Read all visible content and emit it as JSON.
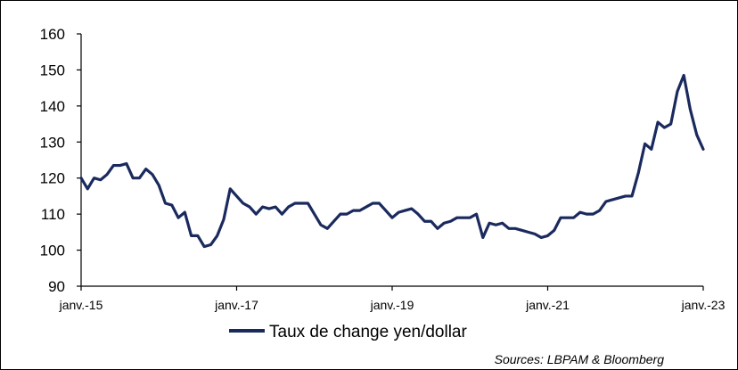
{
  "chart_data": {
    "type": "line",
    "title": "",
    "xlabel": "",
    "ylabel": "",
    "ylim": [
      90,
      160
    ],
    "y_ticks": [
      90,
      100,
      110,
      120,
      130,
      140,
      150,
      160
    ],
    "x_ticks": [
      "janv.-15",
      "janv.-17",
      "janv.-19",
      "janv.-21",
      "janv.-23"
    ],
    "x_range": [
      "2015-01",
      "2023-01"
    ],
    "grid": false,
    "legend_position": "bottom",
    "line_color": "#1a2a5e",
    "series": [
      {
        "name": "Taux de change yen/dollar",
        "points": [
          [
            "2015-01",
            120
          ],
          [
            "2015-02",
            117
          ],
          [
            "2015-03",
            120
          ],
          [
            "2015-04",
            119.5
          ],
          [
            "2015-05",
            121
          ],
          [
            "2015-06",
            123.5
          ],
          [
            "2015-07",
            123.5
          ],
          [
            "2015-08",
            124
          ],
          [
            "2015-09",
            120
          ],
          [
            "2015-10",
            120
          ],
          [
            "2015-11",
            122.5
          ],
          [
            "2015-12",
            121
          ],
          [
            "2016-01",
            118
          ],
          [
            "2016-02",
            113
          ],
          [
            "2016-03",
            112.5
          ],
          [
            "2016-04",
            109
          ],
          [
            "2016-05",
            110.5
          ],
          [
            "2016-06",
            104
          ],
          [
            "2016-07",
            104
          ],
          [
            "2016-08",
            101
          ],
          [
            "2016-09",
            101.5
          ],
          [
            "2016-10",
            104
          ],
          [
            "2016-11",
            108.5
          ],
          [
            "2016-12",
            117
          ],
          [
            "2017-01",
            115
          ],
          [
            "2017-02",
            113
          ],
          [
            "2017-03",
            112
          ],
          [
            "2017-04",
            110
          ],
          [
            "2017-05",
            112
          ],
          [
            "2017-06",
            111.5
          ],
          [
            "2017-07",
            112
          ],
          [
            "2017-08",
            110
          ],
          [
            "2017-09",
            112
          ],
          [
            "2017-10",
            113
          ],
          [
            "2017-11",
            113
          ],
          [
            "2017-12",
            113
          ],
          [
            "2018-01",
            110
          ],
          [
            "2018-02",
            107
          ],
          [
            "2018-03",
            106
          ],
          [
            "2018-04",
            108
          ],
          [
            "2018-05",
            110
          ],
          [
            "2018-06",
            110
          ],
          [
            "2018-07",
            111
          ],
          [
            "2018-08",
            111
          ],
          [
            "2018-09",
            112
          ],
          [
            "2018-10",
            113
          ],
          [
            "2018-11",
            113
          ],
          [
            "2018-12",
            111
          ],
          [
            "2019-01",
            109
          ],
          [
            "2019-02",
            110.5
          ],
          [
            "2019-03",
            111
          ],
          [
            "2019-04",
            111.5
          ],
          [
            "2019-05",
            110
          ],
          [
            "2019-06",
            108
          ],
          [
            "2019-07",
            108
          ],
          [
            "2019-08",
            106
          ],
          [
            "2019-09",
            107.5
          ],
          [
            "2019-10",
            108
          ],
          [
            "2019-11",
            109
          ],
          [
            "2019-12",
            109
          ],
          [
            "2020-01",
            109
          ],
          [
            "2020-02",
            110
          ],
          [
            "2020-03",
            103.5
          ],
          [
            "2020-04",
            107.5
          ],
          [
            "2020-05",
            107
          ],
          [
            "2020-06",
            107.5
          ],
          [
            "2020-07",
            106
          ],
          [
            "2020-08",
            106
          ],
          [
            "2020-09",
            105.5
          ],
          [
            "2020-10",
            105
          ],
          [
            "2020-11",
            104.5
          ],
          [
            "2020-12",
            103.5
          ],
          [
            "2021-01",
            104
          ],
          [
            "2021-02",
            105.5
          ],
          [
            "2021-03",
            109
          ],
          [
            "2021-04",
            109
          ],
          [
            "2021-05",
            109
          ],
          [
            "2021-06",
            110.5
          ],
          [
            "2021-07",
            110
          ],
          [
            "2021-08",
            110
          ],
          [
            "2021-09",
            111
          ],
          [
            "2021-10",
            113.5
          ],
          [
            "2021-11",
            114
          ],
          [
            "2021-12",
            114.5
          ],
          [
            "2022-01",
            115
          ],
          [
            "2022-02",
            115
          ],
          [
            "2022-03",
            121.5
          ],
          [
            "2022-04",
            129.5
          ],
          [
            "2022-05",
            128
          ],
          [
            "2022-06",
            135.5
          ],
          [
            "2022-07",
            134
          ],
          [
            "2022-08",
            135
          ],
          [
            "2022-09",
            144
          ],
          [
            "2022-10",
            148.5
          ],
          [
            "2022-11",
            139
          ],
          [
            "2022-12",
            132
          ],
          [
            "2023-01",
            128
          ]
        ]
      }
    ]
  },
  "source": "Sources: LBPAM & Bloomberg"
}
